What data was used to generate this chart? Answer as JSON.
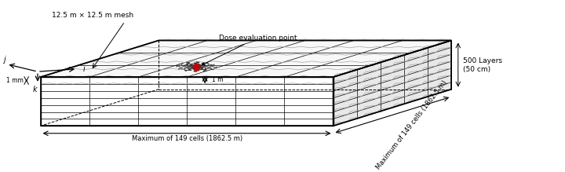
{
  "title": "",
  "background_color": "#ffffff",
  "labels": {
    "mesh": "12.5 m × 12.5 m mesh",
    "dose_point": "Dose evaluation point",
    "one_m": "1 m",
    "one_mm": "1 mm",
    "layers": "500 Layers\n(50 cm)",
    "max_front": "Maximum of 149 cells (1862.5 m)",
    "max_side": "Maximum of 149 cells (1862.5 m)",
    "axis_i": "i",
    "axis_j": "j",
    "axis_k": "k"
  },
  "colors": {
    "box_edge": "#000000",
    "dose_point_color": "#cc0000",
    "text_color": "#000000",
    "fill_top": "#f8f8f8",
    "fill_side": "#e8e8e8",
    "fill_front": "#ffffff",
    "zigzag_color": "#aaaaaa"
  },
  "geometry": {
    "fx0": 0.07,
    "fy0": 0.08,
    "fw": 0.52,
    "fh": 0.36,
    "ddx": 0.21,
    "ddy": 0.27
  }
}
